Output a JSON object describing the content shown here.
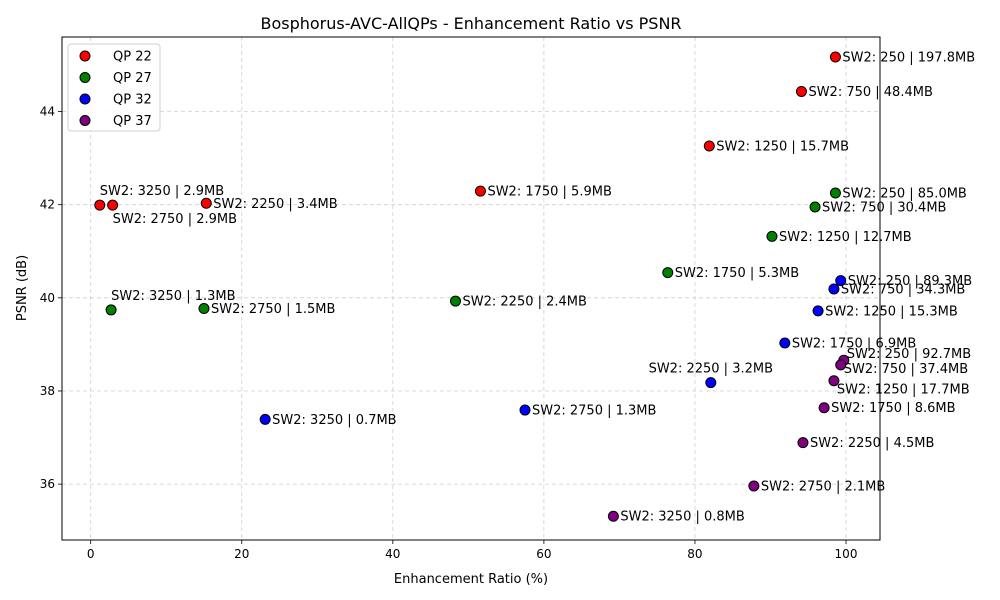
{
  "chart_data": {
    "type": "scatter",
    "title": "Bosphorus-AVC-AllQPs - Enhancement Ratio vs PSNR",
    "xlabel": "Enhancement Ratio (%)",
    "ylabel": "PSNR (dB)",
    "xlim": [
      -3.8,
      104.5
    ],
    "ylim": [
      34.8,
      45.6
    ],
    "xticks": [
      0,
      20,
      40,
      60,
      80,
      100
    ],
    "yticks": [
      36,
      38,
      40,
      42,
      44
    ],
    "grid": true,
    "legend_position": "top-left",
    "series": [
      {
        "name": "QP 22",
        "color": "#ff0000",
        "points": [
          {
            "x": 98.6,
            "y": 45.17,
            "label": "SW2: 250 | 197.8MB"
          },
          {
            "x": 94.1,
            "y": 44.43,
            "label": "SW2: 750 | 48.4MB"
          },
          {
            "x": 81.9,
            "y": 43.26,
            "label": "SW2: 1250 | 15.7MB"
          },
          {
            "x": 51.6,
            "y": 42.29,
            "label": "SW2: 1750 | 5.9MB"
          },
          {
            "x": 15.3,
            "y": 42.03,
            "label": "SW2: 2250 | 3.4MB"
          },
          {
            "x": 2.9,
            "y": 41.99,
            "label": "SW2: 2750 | 2.9MB"
          },
          {
            "x": 1.2,
            "y": 41.99,
            "label": "SW2: 3250 | 2.9MB"
          }
        ]
      },
      {
        "name": "QP 27",
        "color": "#008000",
        "points": [
          {
            "x": 98.6,
            "y": 42.25,
            "label": "SW2: 250 | 85.0MB"
          },
          {
            "x": 95.9,
            "y": 41.95,
            "label": "SW2: 750 | 30.4MB"
          },
          {
            "x": 90.2,
            "y": 41.32,
            "label": "SW2: 1250 | 12.7MB"
          },
          {
            "x": 76.4,
            "y": 40.54,
            "label": "SW2: 1750 | 5.3MB"
          },
          {
            "x": 48.3,
            "y": 39.93,
            "label": "SW2: 2250 | 2.4MB"
          },
          {
            "x": 15.0,
            "y": 39.77,
            "label": "SW2: 2750 | 1.5MB"
          },
          {
            "x": 2.7,
            "y": 39.74,
            "label": "SW2: 3250 | 1.3MB"
          }
        ]
      },
      {
        "name": "QP 32",
        "color": "#0000ff",
        "points": [
          {
            "x": 99.3,
            "y": 40.37,
            "label": "SW2: 250 | 89.3MB"
          },
          {
            "x": 98.4,
            "y": 40.19,
            "label": "SW2: 750 | 34.3MB"
          },
          {
            "x": 96.3,
            "y": 39.72,
            "label": "SW2: 1250 | 15.3MB"
          },
          {
            "x": 91.9,
            "y": 39.03,
            "label": "SW2: 1750 | 6.9MB"
          },
          {
            "x": 82.1,
            "y": 38.18,
            "label": "SW2: 2250 | 3.2MB"
          },
          {
            "x": 57.5,
            "y": 37.59,
            "label": "SW2: 2750 | 1.3MB"
          },
          {
            "x": 23.1,
            "y": 37.39,
            "label": "SW2: 3250 | 0.7MB"
          }
        ]
      },
      {
        "name": "QP 37",
        "color": "#800080",
        "points": [
          {
            "x": 99.7,
            "y": 38.66,
            "label": "SW2: 250 | 92.7MB"
          },
          {
            "x": 99.3,
            "y": 38.56,
            "label": "SW2: 750 | 37.4MB"
          },
          {
            "x": 98.4,
            "y": 38.22,
            "label": "SW2: 1250 | 17.7MB"
          },
          {
            "x": 97.1,
            "y": 37.64,
            "label": "SW2: 1750 | 8.6MB"
          },
          {
            "x": 94.3,
            "y": 36.89,
            "label": "SW2: 2250 | 4.5MB"
          },
          {
            "x": 87.8,
            "y": 35.96,
            "label": "SW2: 2750 | 2.1MB"
          },
          {
            "x": 69.2,
            "y": 35.31,
            "label": "SW2: 3250 | 0.8MB"
          }
        ]
      }
    ]
  }
}
